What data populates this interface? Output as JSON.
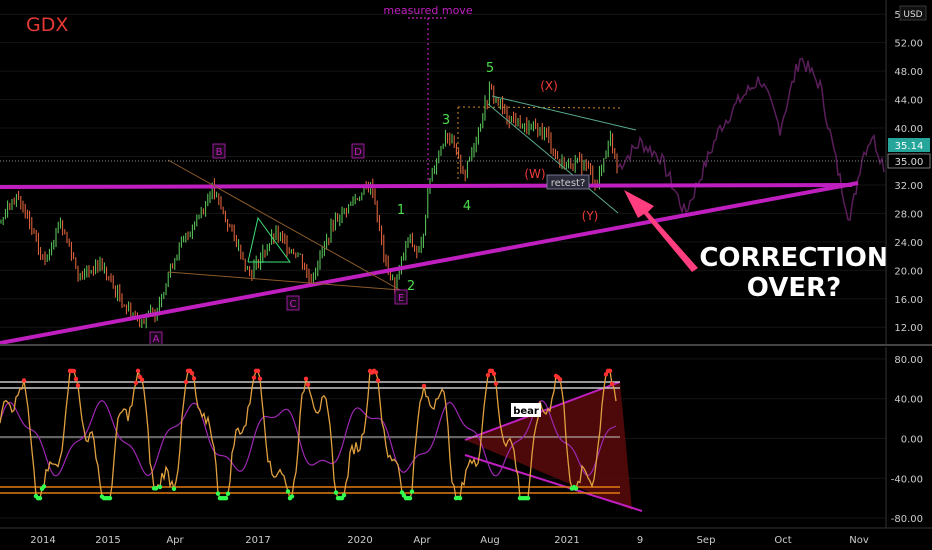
{
  "chart_data": [
    {
      "type": "line",
      "title": "GDX",
      "currency": "USD",
      "price_tag_current": "35.14",
      "price_tag_level": "35.00",
      "price_axis": [
        "56.00",
        "52.00",
        "48.00",
        "44.00",
        "40.00",
        "36.00",
        "32.00",
        "28.00",
        "24.00",
        "20.00",
        "16.00",
        "12.00"
      ],
      "ylim": [
        9.5,
        58
      ],
      "current_price": 35.14,
      "annotations": {
        "measured_move": "measured move",
        "main_text_line1": "CORRECTION",
        "main_text_line2": "OVER?",
        "retest": "retest?",
        "waves_abc": [
          "A",
          "B",
          "C",
          "D",
          "E"
        ],
        "waves_impulse": [
          "1",
          "2",
          "3",
          "4",
          "5"
        ],
        "waves_corrective": [
          "(W)",
          "(X)",
          "(Y)"
        ]
      },
      "colors": {
        "title": "#e53935",
        "magenta": "#c01fc0",
        "callout": "#ff3d7f",
        "green_wave": "#4cdd4c",
        "red_wave": "#f23b3b",
        "candle_up": "#5fd05f",
        "candle_down": "#f06a40"
      }
    },
    {
      "type": "line",
      "indicator_label": "bear",
      "axis": [
        "80.00",
        "40.00",
        "0.00",
        "-40.00",
        "-80.00"
      ],
      "ylim": [
        -90,
        92
      ],
      "time_axis": [
        "2014",
        "2015",
        "Apr",
        "2017",
        "2020",
        "Apr",
        "Aug",
        "2021",
        "9",
        "Sep",
        "Oct",
        "Nov"
      ]
    }
  ]
}
